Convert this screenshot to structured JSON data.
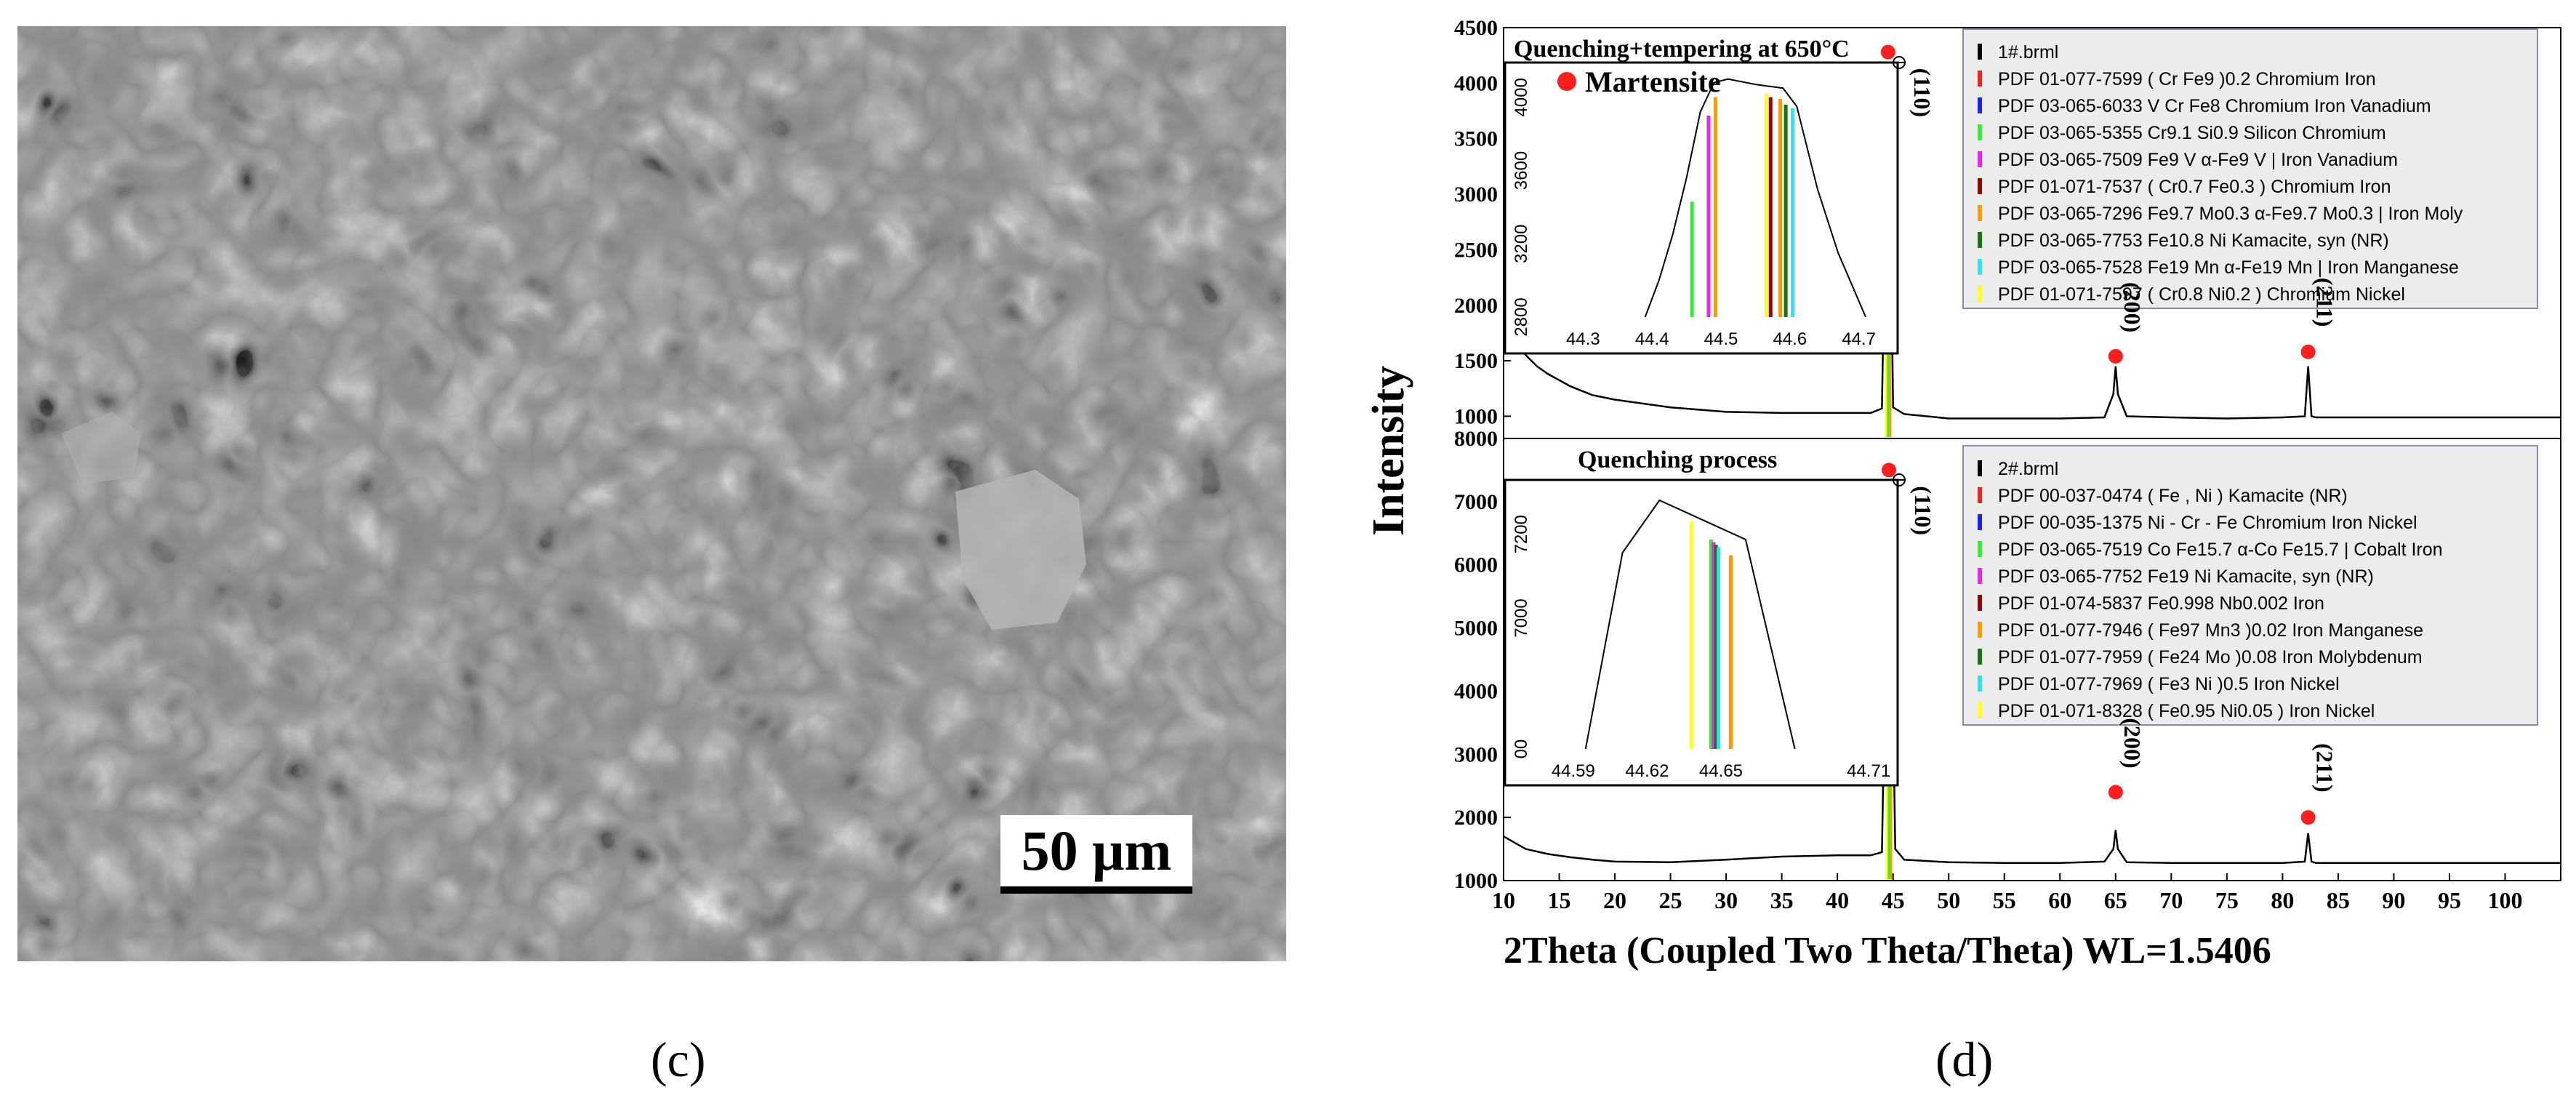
{
  "panels": {
    "left_label": "(c)",
    "right_label": "(d)"
  },
  "micrograph": {
    "scale_bar_text": "50 μm"
  },
  "colors": {
    "black": "#000000",
    "red": "#ff1f1f",
    "blue": "#1f1fff",
    "green": "#33ee33",
    "magenta": "#ee22ee",
    "darkred": "#990000",
    "orange": "#ff9900",
    "darkgreen": "#117711",
    "cyan": "#33e0f0",
    "yellow": "#ffff22"
  },
  "chart_data": [
    {
      "type": "line",
      "title": "Quenching+tempering at 650°C",
      "xlabel": "2Theta (Coupled Two Theta/Theta) WL=1.5406",
      "ylabel": "Intensity",
      "xlim": [
        10,
        105
      ],
      "ylim": [
        800,
        4500
      ],
      "x_ticks": [
        10,
        15,
        20,
        25,
        30,
        35,
        40,
        45,
        50,
        55,
        60,
        65,
        70,
        75,
        80,
        85,
        90,
        95,
        100
      ],
      "y_ticks": [
        1000,
        1500,
        2000,
        2500,
        3000,
        3500,
        4000,
        4500
      ],
      "series": [
        {
          "name": "1#.brml",
          "x": [
            10,
            11,
            12,
            13,
            14,
            16,
            18,
            20,
            25,
            30,
            35,
            40,
            43,
            44,
            44.4,
            44.55,
            44.7,
            45,
            46,
            50,
            55,
            60,
            64,
            64.8,
            65,
            65.2,
            66,
            70,
            75,
            80,
            82,
            82.3,
            82.6,
            83,
            90,
            100,
            105
          ],
          "y": [
            2000,
            1700,
            1550,
            1450,
            1380,
            1270,
            1190,
            1150,
            1080,
            1040,
            1030,
            1030,
            1030,
            1070,
            3500,
            4150,
            3600,
            1080,
            1020,
            980,
            980,
            980,
            990,
            1200,
            1450,
            1200,
            1000,
            990,
            980,
            990,
            1000,
            1450,
            1000,
            990,
            990,
            990,
            990
          ]
        }
      ],
      "peaks": [
        {
          "x": 44.55,
          "y": 4280,
          "label": "(110)",
          "phase": "Martensite"
        },
        {
          "x": 65.0,
          "y": 1540,
          "label": "(200)",
          "phase": "Martensite"
        },
        {
          "x": 82.3,
          "y": 1580,
          "label": "(211)",
          "phase": "Martensite"
        }
      ],
      "legend": [
        {
          "label": "1#.brml",
          "color": "#000000"
        },
        {
          "label": "PDF 01-077-7599 ( Cr Fe9 )0.2 Chromium Iron",
          "color": "#ff1f1f"
        },
        {
          "label": "PDF 03-065-6033 V Cr Fe8 Chromium Iron Vanadium",
          "color": "#1f1fff"
        },
        {
          "label": "PDF 03-065-5355 Cr9.1 Si0.9 Silicon Chromium",
          "color": "#33ee33"
        },
        {
          "label": "PDF 03-065-7509 Fe9 V α-Fe9 V | Iron Vanadium",
          "color": "#ee22ee"
        },
        {
          "label": "PDF 01-071-7537 ( Cr0.7 Fe0.3 ) Chromium Iron",
          "color": "#990000"
        },
        {
          "label": "PDF 03-065-7296 Fe9.7 Mo0.3 α-Fe9.7 Mo0.3 | Iron Moly",
          "color": "#ff9900"
        },
        {
          "label": "PDF 03-065-7753 Fe10.8 Ni Kamacite, syn (NR)",
          "color": "#117711"
        },
        {
          "label": "PDF 03-065-7528 Fe19 Mn α-Fe19 Mn | Iron Manganese",
          "color": "#33e0f0"
        },
        {
          "label": "PDF 01-071-7597 ( Cr0.8 Ni0.2 ) Chromium Nickel",
          "color": "#ffff22"
        }
      ],
      "inset": {
        "phase_label": "Martensite",
        "xlim": [
          44.25,
          44.75
        ],
        "ylim": [
          2800,
          4150
        ],
        "x_ticks": [
          44.3,
          44.4,
          44.5,
          44.6,
          44.7
        ],
        "y_ticks": [
          2800,
          3200,
          3600,
          4000
        ],
        "profile_x": [
          44.39,
          44.41,
          44.43,
          44.45,
          44.47,
          44.49,
          44.51,
          44.55,
          44.59,
          44.61,
          44.64,
          44.67,
          44.71
        ],
        "profile_y": [
          2800,
          3000,
          3250,
          3560,
          3920,
          4080,
          4100,
          4070,
          4050,
          3950,
          3500,
          3150,
          2800
        ],
        "lines": [
          {
            "x": 44.458,
            "y": 3430,
            "color": "#33ee33"
          },
          {
            "x": 44.482,
            "y": 3900,
            "color": "#ee22ee"
          },
          {
            "x": 44.492,
            "y": 4000,
            "color": "#ff9900"
          },
          {
            "x": 44.566,
            "y": 4020,
            "color": "#ffff22"
          },
          {
            "x": 44.572,
            "y": 4000,
            "color": "#990000"
          },
          {
            "x": 44.586,
            "y": 3990,
            "color": "#ff9900"
          },
          {
            "x": 44.594,
            "y": 3960,
            "color": "#117711"
          },
          {
            "x": 44.604,
            "y": 3940,
            "color": "#33e0f0"
          }
        ]
      }
    },
    {
      "type": "line",
      "title": "Quenching process",
      "xlabel": "2Theta (Coupled Two Theta/Theta) WL=1.5406",
      "ylabel": "Intensity",
      "xlim": [
        10,
        105
      ],
      "ylim": [
        1000,
        8000
      ],
      "x_ticks": [
        10,
        15,
        20,
        25,
        30,
        35,
        40,
        45,
        50,
        55,
        60,
        65,
        70,
        75,
        80,
        85,
        90,
        95,
        100
      ],
      "y_ticks": [
        1000,
        2000,
        3000,
        4000,
        5000,
        6000,
        7000,
        8000
      ],
      "series": [
        {
          "name": "2#.brml",
          "x": [
            10,
            11,
            12,
            14,
            16,
            18,
            20,
            25,
            30,
            35,
            40,
            43,
            44,
            44.4,
            44.63,
            44.9,
            45.2,
            46,
            50,
            55,
            60,
            64,
            64.8,
            65,
            65.2,
            66,
            70,
            75,
            80,
            82,
            82.3,
            82.6,
            83,
            90,
            100,
            105
          ],
          "y": [
            1700,
            1600,
            1500,
            1420,
            1370,
            1330,
            1300,
            1290,
            1330,
            1380,
            1400,
            1400,
            1450,
            5500,
            7350,
            5000,
            1500,
            1330,
            1290,
            1280,
            1280,
            1300,
            1500,
            1800,
            1500,
            1290,
            1280,
            1280,
            1280,
            1300,
            1750,
            1300,
            1280,
            1280,
            1280,
            1280
          ]
        }
      ],
      "peaks": [
        {
          "x": 44.63,
          "y": 7500,
          "label": "(110)",
          "phase": "Martensite"
        },
        {
          "x": 65.0,
          "y": 2400,
          "label": "(200)",
          "phase": "Martensite"
        },
        {
          "x": 82.3,
          "y": 2000,
          "label": "(211)",
          "phase": "Martensite"
        }
      ],
      "legend": [
        {
          "label": "2#.brml",
          "color": "#000000"
        },
        {
          "label": "PDF 00-037-0474 ( Fe , Ni ) Kamacite (NR)",
          "color": "#ff1f1f"
        },
        {
          "label": "PDF 00-035-1375 Ni - Cr - Fe Chromium Iron Nickel",
          "color": "#1f1fff"
        },
        {
          "label": "PDF 03-065-7519 Co Fe15.7 α-Co Fe15.7 | Cobalt Iron",
          "color": "#33ee33"
        },
        {
          "label": "PDF 03-065-7752 Fe19 Ni Kamacite, syn (NR)",
          "color": "#ee22ee"
        },
        {
          "label": "PDF 01-074-5837 Fe0.998 Nb0.002 Iron",
          "color": "#990000"
        },
        {
          "label": "PDF 01-077-7946 ( Fe97 Mn3 )0.02 Iron Manganese",
          "color": "#ff9900"
        },
        {
          "label": "PDF 01-077-7959 ( Fe24 Mo )0.08 Iron Molybdenum",
          "color": "#117711"
        },
        {
          "label": "PDF 01-077-7969 ( Fe3 Ni )0.5 Iron Nickel",
          "color": "#33e0f0"
        },
        {
          "label": "PDF 01-071-8328 ( Fe0.95 Ni0.05 ) Iron Nickel",
          "color": "#ffff22"
        }
      ],
      "inset": {
        "xlim": [
          44.58,
          44.72
        ],
        "ylim": [
          6500,
          7500
        ],
        "x_ticks": [
          44.59,
          44.62,
          44.65,
          44.71
        ],
        "y_tick_labels": [
          "00",
          "7000",
          "7200"
        ],
        "profile_x": [
          44.595,
          44.61,
          44.625,
          44.66,
          44.68
        ],
        "profile_y": [
          6500,
          7250,
          7450,
          7300,
          6500
        ],
        "lines": [
          {
            "x": 44.638,
            "y": 7370,
            "color": "#ffff22"
          },
          {
            "x": 44.646,
            "y": 7300,
            "color": "#33ee33"
          },
          {
            "x": 44.647,
            "y": 7290,
            "color": "#ee22ee"
          },
          {
            "x": 44.648,
            "y": 7280,
            "color": "#117711"
          },
          {
            "x": 44.649,
            "y": 7270,
            "color": "#33e0f0"
          },
          {
            "x": 44.654,
            "y": 7240,
            "color": "#ff9900"
          }
        ]
      }
    }
  ]
}
